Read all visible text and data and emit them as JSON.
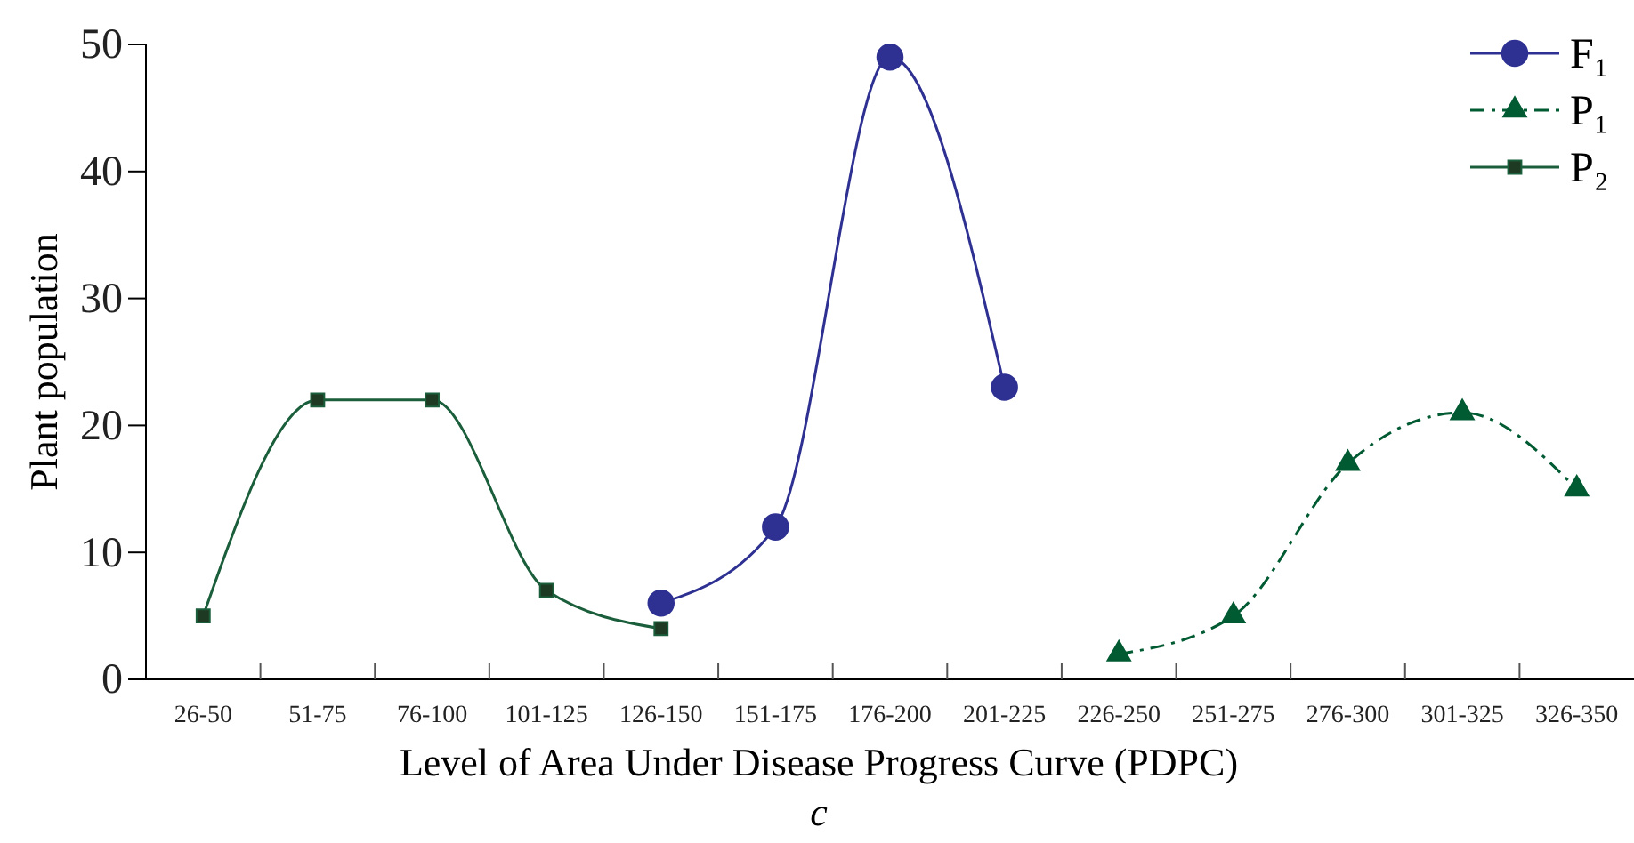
{
  "chart_data": {
    "type": "line",
    "xlabel": "Level of Area Under Disease Progress Curve (PDPC)",
    "ylabel": "Plant population",
    "categories": [
      "26-50",
      "51-75",
      "76-100",
      "101-125",
      "126-150",
      "151-175",
      "176-200",
      "201-225",
      "226-250",
      "251-275",
      "276-300",
      "301-325",
      "326-350"
    ],
    "series": [
      {
        "name": "F₁",
        "color": "#2e3192",
        "marker": "circle",
        "line_style": "solid",
        "values": [
          null,
          null,
          null,
          null,
          6,
          12,
          49,
          23,
          null,
          null,
          null,
          null,
          null
        ]
      },
      {
        "name": "P₁",
        "color": "#005a32",
        "marker": "triangle",
        "line_style": "dashed",
        "values": [
          null,
          null,
          null,
          null,
          null,
          null,
          null,
          null,
          2,
          5,
          17,
          21,
          15
        ]
      },
      {
        "name": "P₂",
        "color": "#1b5e3b",
        "marker": "square",
        "line_style": "solid",
        "values": [
          5,
          22,
          22,
          7,
          4,
          null,
          null,
          null,
          null,
          null,
          null,
          null,
          null
        ]
      }
    ],
    "ylim": [
      0,
      50
    ],
    "yticks": [
      0,
      10,
      20,
      30,
      40,
      50
    ],
    "grid": false,
    "legend": "top right",
    "annotations": [
      "c"
    ]
  }
}
